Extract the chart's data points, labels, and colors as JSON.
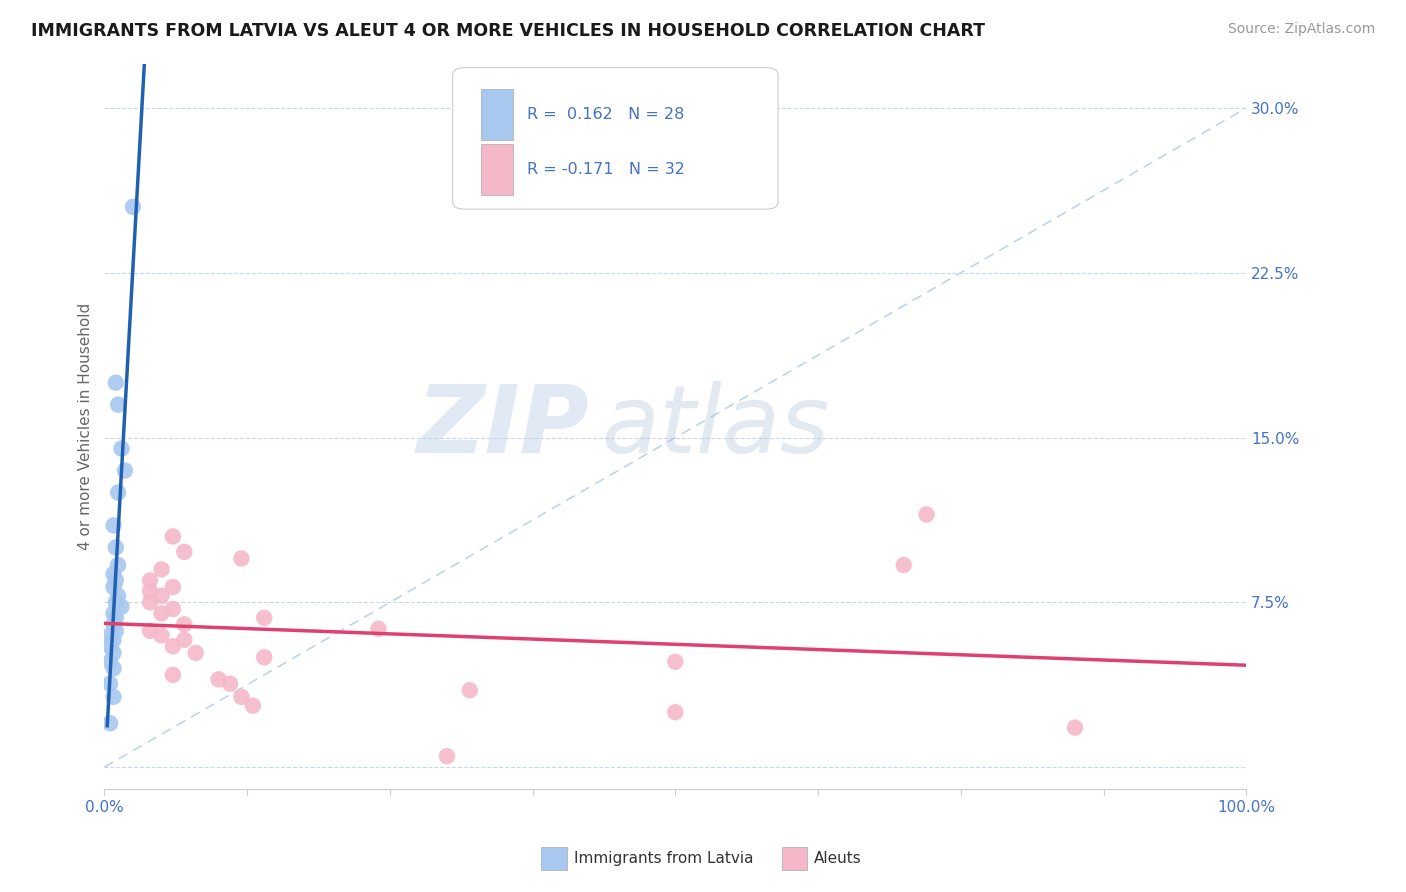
{
  "title": "IMMIGRANTS FROM LATVIA VS ALEUT 4 OR MORE VEHICLES IN HOUSEHOLD CORRELATION CHART",
  "source": "Source: ZipAtlas.com",
  "ylabel": "4 or more Vehicles in Household",
  "xlim": [
    0.0,
    1.0
  ],
  "ylim": [
    -0.01,
    0.32
  ],
  "yticks": [
    0.0,
    0.075,
    0.15,
    0.225,
    0.3
  ],
  "ytick_labels": [
    "",
    "7.5%",
    "15.0%",
    "22.5%",
    "30.0%"
  ],
  "r_latvia": 0.162,
  "n_latvia": 28,
  "r_aleut": -0.171,
  "n_aleut": 32,
  "color_latvia": "#a8c8f0",
  "color_aleut": "#f4b8c8",
  "line_color_latvia": "#2060b0",
  "line_color_aleut": "#e04070",
  "watermark_zip": "ZIP",
  "watermark_atlas": "atlas",
  "latvia_points": [
    [
      0.025,
      0.255
    ],
    [
      0.01,
      0.175
    ],
    [
      0.012,
      0.165
    ],
    [
      0.015,
      0.145
    ],
    [
      0.018,
      0.135
    ],
    [
      0.012,
      0.125
    ],
    [
      0.008,
      0.11
    ],
    [
      0.01,
      0.1
    ],
    [
      0.012,
      0.092
    ],
    [
      0.008,
      0.088
    ],
    [
      0.01,
      0.085
    ],
    [
      0.008,
      0.082
    ],
    [
      0.012,
      0.078
    ],
    [
      0.01,
      0.075
    ],
    [
      0.015,
      0.073
    ],
    [
      0.008,
      0.07
    ],
    [
      0.01,
      0.068
    ],
    [
      0.008,
      0.065
    ],
    [
      0.01,
      0.062
    ],
    [
      0.005,
      0.06
    ],
    [
      0.008,
      0.058
    ],
    [
      0.005,
      0.055
    ],
    [
      0.008,
      0.052
    ],
    [
      0.005,
      0.048
    ],
    [
      0.008,
      0.045
    ],
    [
      0.005,
      0.038
    ],
    [
      0.008,
      0.032
    ],
    [
      0.005,
      0.02
    ]
  ],
  "aleut_points": [
    [
      0.06,
      0.105
    ],
    [
      0.07,
      0.098
    ],
    [
      0.12,
      0.095
    ],
    [
      0.05,
      0.09
    ],
    [
      0.04,
      0.085
    ],
    [
      0.06,
      0.082
    ],
    [
      0.04,
      0.08
    ],
    [
      0.05,
      0.078
    ],
    [
      0.04,
      0.075
    ],
    [
      0.06,
      0.072
    ],
    [
      0.05,
      0.07
    ],
    [
      0.14,
      0.068
    ],
    [
      0.07,
      0.065
    ],
    [
      0.04,
      0.062
    ],
    [
      0.24,
      0.063
    ],
    [
      0.05,
      0.06
    ],
    [
      0.07,
      0.058
    ],
    [
      0.06,
      0.055
    ],
    [
      0.08,
      0.052
    ],
    [
      0.14,
      0.05
    ],
    [
      0.5,
      0.048
    ],
    [
      0.06,
      0.042
    ],
    [
      0.1,
      0.04
    ],
    [
      0.11,
      0.038
    ],
    [
      0.12,
      0.032
    ],
    [
      0.13,
      0.028
    ],
    [
      0.7,
      0.092
    ],
    [
      0.72,
      0.115
    ],
    [
      0.85,
      0.018
    ],
    [
      0.5,
      0.025
    ],
    [
      0.32,
      0.035
    ],
    [
      0.3,
      0.005
    ]
  ]
}
